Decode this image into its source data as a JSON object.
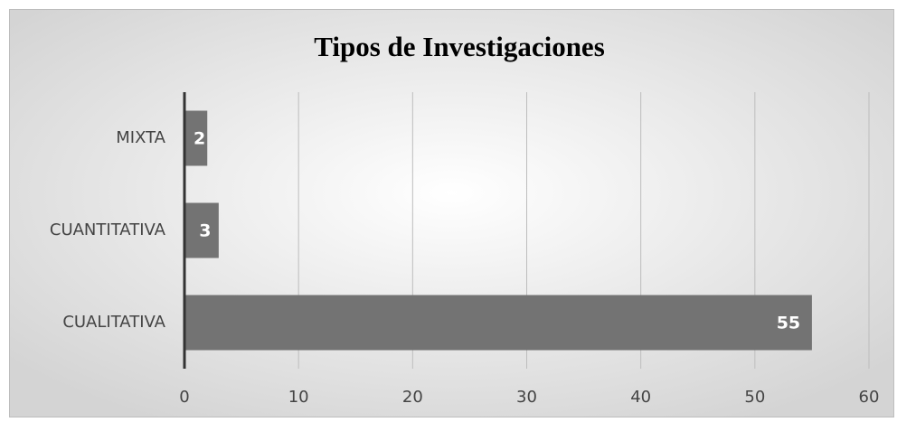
{
  "chart_data": {
    "type": "bar",
    "orientation": "horizontal",
    "title": "Tipos de Investigaciones",
    "categories": [
      "MIXTA",
      "CUANTITATIVA",
      "CUALITATIVA"
    ],
    "values": [
      2,
      3,
      55
    ],
    "color": "#737373",
    "xlim": [
      0,
      60
    ],
    "xticks": [
      0,
      10,
      20,
      30,
      40,
      50,
      60
    ],
    "grid": true
  }
}
